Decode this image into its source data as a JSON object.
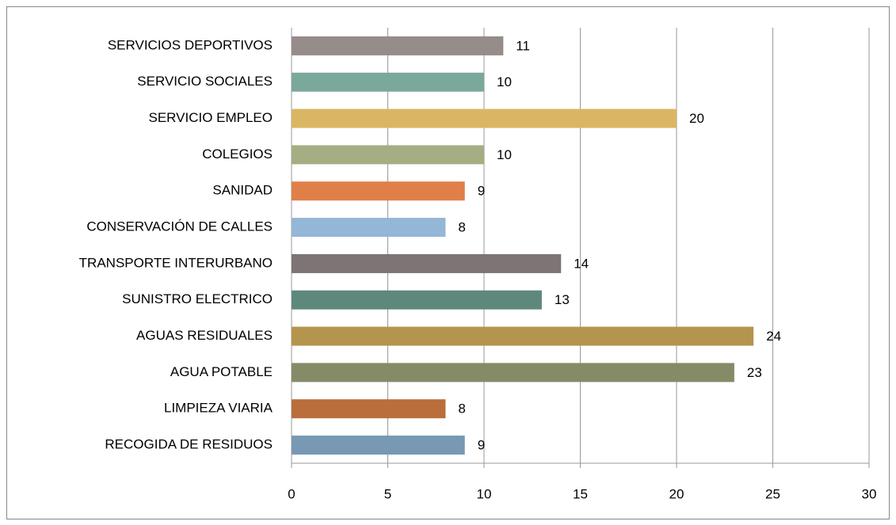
{
  "chart_data": {
    "type": "bar",
    "orientation": "horizontal",
    "categories": [
      "SERVICIOS DEPORTIVOS",
      "SERVICIO SOCIALES",
      "SERVICIO EMPLEO",
      "COLEGIOS",
      "SANIDAD",
      "CONSERVACIÓN DE CALLES",
      "TRANSPORTE INTERURBANO",
      "SUNISTRO ELECTRICO",
      "AGUAS RESIDUALES",
      "AGUA POTABLE",
      "LIMPIEZA VIARIA",
      "RECOGIDA DE RESIDUOS"
    ],
    "values": [
      11,
      10,
      20,
      10,
      9,
      8,
      14,
      13,
      24,
      23,
      8,
      9
    ],
    "colors": [
      "#968c8a",
      "#7aa89b",
      "#dbb662",
      "#a5ad83",
      "#e07f48",
      "#94b6d7",
      "#7c7475",
      "#5f887d",
      "#b5944d",
      "#858b67",
      "#b96e3c",
      "#7898b4"
    ],
    "xlim": [
      0,
      30
    ],
    "xticks": [
      0,
      5,
      10,
      15,
      20,
      25,
      30
    ],
    "grid": true
  }
}
